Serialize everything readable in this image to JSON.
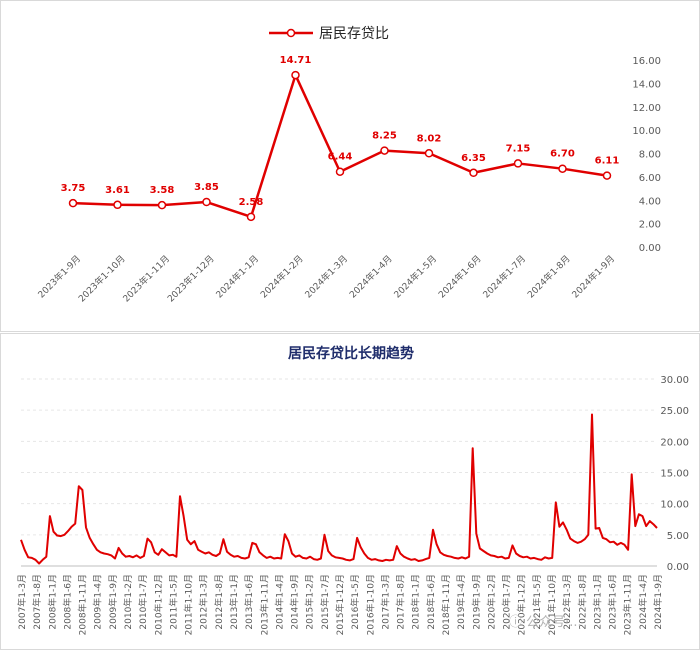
{
  "colors": {
    "series": "#e00000",
    "grid": "#e6e6e6",
    "axis_text": "#595959",
    "title2": "#1f2d6b"
  },
  "chart_data": [
    {
      "type": "line",
      "title": "",
      "legend": {
        "label": "居民存贷比",
        "position": "top-center"
      },
      "categories": [
        "2023年1-9月",
        "2023年1-10月",
        "2023年1-11月",
        "2023年1-12月",
        "2024年1-1月",
        "2024年1-2月",
        "2024年1-3月",
        "2024年1-4月",
        "2024年1-5月",
        "2024年1-6月",
        "2024年1-7月",
        "2024年1-8月",
        "2024年1-9月"
      ],
      "values": [
        3.75,
        3.61,
        3.58,
        3.85,
        2.58,
        14.71,
        6.44,
        8.25,
        8.02,
        6.35,
        7.15,
        6.7,
        6.11
      ],
      "data_labels": [
        "3.75",
        "3.61",
        "3.58",
        "3.85",
        "2.58",
        "14.71",
        "6.44",
        "8.25",
        "8.02",
        "6.35",
        "7.15",
        "6.70",
        "6.11"
      ],
      "y_axis": {
        "position": "right",
        "ylim": [
          0,
          16
        ],
        "ticks": [
          "0.00",
          "2.00",
          "4.00",
          "6.00",
          "8.00",
          "10.00",
          "12.00",
          "14.00",
          "16.00"
        ]
      },
      "grid": false
    },
    {
      "type": "line",
      "title": "居民存贷比长期趋势",
      "x_tick_labels": [
        "2007年1-3月",
        "2007年1-8月",
        "2008年1-1月",
        "2008年1-6月",
        "2008年1-11月",
        "2009年1-4月",
        "2009年1-9月",
        "2010年1-2月",
        "2010年1-7月",
        "2010年1-12月",
        "2011年1-5月",
        "2011年1-10月",
        "2012年1-3月",
        "2012年1-8月",
        "2013年1-1月",
        "2013年1-6月",
        "2013年1-11月",
        "2014年1-4月",
        "2014年1-9月",
        "2015年1-2月",
        "2015年1-7月",
        "2015年1-12月",
        "2016年1-5月",
        "2016年1-10月",
        "2017年1-3月",
        "2017年1-8月",
        "2018年1-1月",
        "2018年1-6月",
        "2018年1-11月",
        "2019年1-4月",
        "2019年1-9月",
        "2020年1-2月",
        "2020年1-7月",
        "2020年1-12月",
        "2021年1-5月",
        "2021年1-10月",
        "2022年1-3月",
        "2022年1-8月",
        "2023年1-1月",
        "2023年1-6月",
        "2023年1-11月",
        "2024年1-4月",
        "2024年1-9月"
      ],
      "values": [
        4.2,
        2.6,
        1.4,
        1.3,
        1.0,
        0.4,
        1.0,
        1.5,
        8.0,
        5.5,
        4.9,
        4.8,
        5.0,
        5.6,
        6.3,
        6.8,
        12.8,
        12.2,
        6.2,
        4.5,
        3.5,
        2.6,
        2.2,
        2.0,
        1.9,
        1.7,
        1.2,
        2.9,
        2.0,
        1.5,
        1.6,
        1.4,
        1.7,
        1.3,
        1.6,
        4.4,
        3.8,
        2.2,
        1.8,
        2.7,
        2.2,
        1.7,
        1.8,
        1.5,
        11.2,
        8.0,
        4.2,
        3.5,
        4.0,
        2.6,
        2.3,
        2.0,
        2.2,
        1.8,
        1.6,
        2.0,
        4.3,
        2.3,
        1.8,
        1.5,
        1.6,
        1.3,
        1.2,
        1.4,
        3.7,
        3.5,
        2.2,
        1.7,
        1.3,
        1.5,
        1.2,
        1.3,
        1.2,
        5.1,
        4.0,
        2.0,
        1.5,
        1.7,
        1.3,
        1.2,
        1.5,
        1.1,
        1.0,
        1.2,
        5.0,
        2.4,
        1.7,
        1.4,
        1.3,
        1.2,
        1.0,
        0.9,
        1.1,
        4.5,
        3.0,
        2.0,
        1.3,
        1.0,
        1.1,
        0.9,
        0.8,
        1.0,
        0.9,
        1.0,
        3.2,
        2.0,
        1.5,
        1.2,
        1.0,
        1.1,
        0.8,
        0.9,
        1.1,
        1.3,
        5.8,
        3.5,
        2.2,
        1.8,
        1.6,
        1.5,
        1.3,
        1.2,
        1.4,
        1.2,
        1.5,
        18.9,
        5.2,
        2.8,
        2.4,
        2.0,
        1.7,
        1.6,
        1.4,
        1.5,
        1.2,
        1.3,
        3.3,
        2.0,
        1.6,
        1.4,
        1.5,
        1.2,
        1.3,
        1.1,
        1.0,
        1.4,
        1.2,
        1.3,
        10.2,
        6.3,
        7.0,
        5.8,
        4.4,
        4.0,
        3.7,
        3.9,
        4.3,
        5.0,
        24.3,
        6.0,
        6.1,
        4.5,
        4.3,
        3.8,
        3.9,
        3.4,
        3.7,
        3.4,
        2.6,
        14.7,
        6.4,
        8.3,
        8.0,
        6.4,
        7.2,
        6.7,
        6.1
      ],
      "y_axis": {
        "position": "right",
        "ylim": [
          0,
          30
        ],
        "ticks": [
          "0.00",
          "5.00",
          "10.00",
          "15.00",
          "20.00",
          "25.00",
          "30.00"
        ]
      },
      "grid": true
    }
  ],
  "watermark": "ⓘ 公众号·..."
}
